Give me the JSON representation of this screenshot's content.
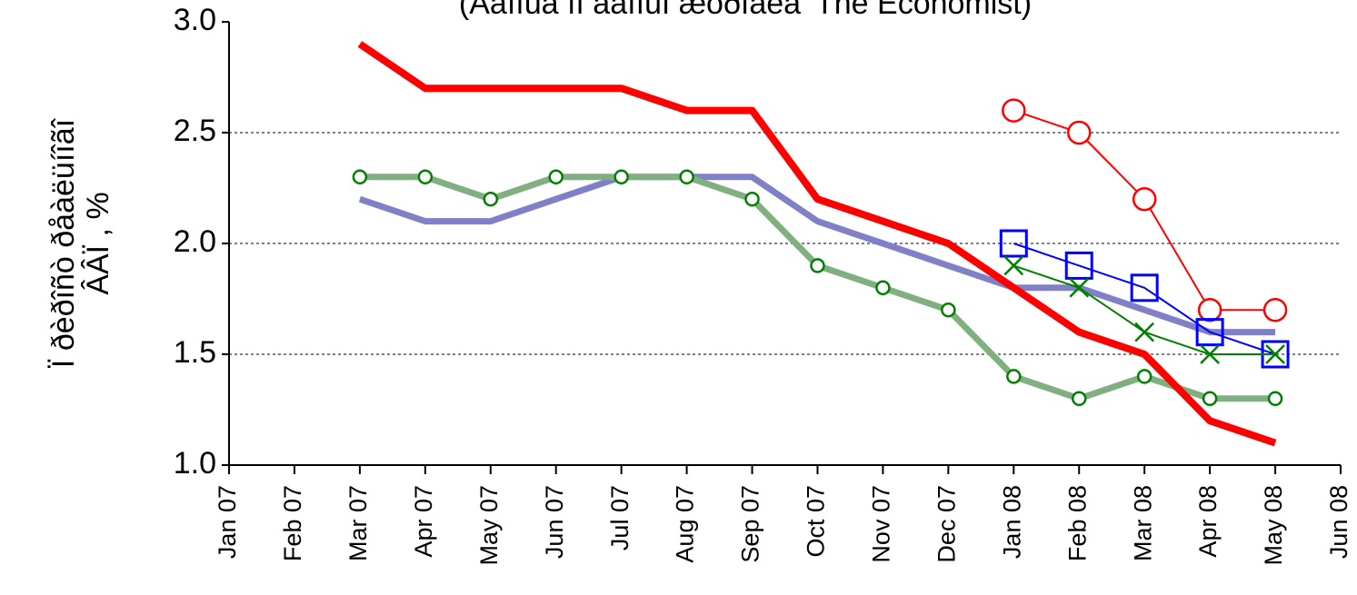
{
  "chart_data": {
    "type": "line",
    "title": "(Äàííûå ïî äàííûì æóðíàëà 'The Economist)",
    "y_label": [
      "Ï ðèðîñò ðåàëüíîãî",
      "ÂÂÏ , %"
    ],
    "categories": [
      "Jan 07",
      "Feb 07",
      "Mar 07",
      "Apr 07",
      "May 07",
      "Jun 07",
      "Jul 07",
      "Aug 07",
      "Sep 07",
      "Oct 07",
      "Nov 07",
      "Dec 07",
      "Jan 08",
      "Feb 08",
      "Mar 08",
      "Apr 08",
      "May 08",
      "Jun 08"
    ],
    "ylim": [
      1.0,
      3.0
    ],
    "yticks": [
      {
        "value": 1.0,
        "label": "1.0"
      },
      1.5,
      {
        "value": 2.0,
        "label": "2.0"
      },
      2.5,
      {
        "value": 3.0,
        "label": "3.0"
      }
    ],
    "grid": true,
    "series": [
      {
        "color": "#8080c8",
        "width": 7,
        "marker": "none",
        "values": [
          null,
          null,
          2.2,
          2.1,
          2.1,
          2.2,
          2.3,
          2.3,
          2.3,
          2.1,
          2.0,
          1.9,
          1.8,
          1.8,
          1.7,
          1.6,
          1.6,
          null
        ]
      },
      {
        "color": "#80b080",
        "width": 7,
        "marker": "circle",
        "marker_color": "#008000",
        "values": [
          null,
          null,
          2.3,
          2.3,
          2.2,
          2.3,
          2.3,
          2.3,
          2.2,
          1.9,
          1.8,
          1.7,
          1.4,
          1.3,
          1.4,
          1.3,
          1.3,
          null
        ]
      },
      {
        "color": "#ff0000",
        "width": 8,
        "marker": "none",
        "values": [
          null,
          null,
          2.9,
          2.7,
          2.7,
          2.7,
          2.7,
          2.6,
          2.6,
          2.2,
          2.1,
          2.0,
          1.8,
          1.6,
          1.5,
          1.2,
          1.1,
          null
        ]
      },
      {
        "color": "#ff0000",
        "width": 2,
        "marker": "big-circle",
        "marker_color": "#ff0000",
        "values": [
          null,
          null,
          null,
          null,
          null,
          null,
          null,
          null,
          null,
          null,
          null,
          null,
          2.6,
          2.5,
          2.2,
          1.7,
          1.7,
          null
        ]
      },
      {
        "color": "#0000ff",
        "width": 2,
        "marker": "square",
        "marker_color": "#0000ff",
        "values": [
          null,
          null,
          null,
          null,
          null,
          null,
          null,
          null,
          null,
          null,
          null,
          null,
          2.0,
          1.9,
          1.8,
          1.6,
          1.5,
          null
        ]
      },
      {
        "color": "#008000",
        "width": 2,
        "marker": "x",
        "marker_color": "#008000",
        "values": [
          null,
          null,
          null,
          null,
          null,
          null,
          null,
          null,
          null,
          null,
          null,
          null,
          1.9,
          1.8,
          1.6,
          1.5,
          1.5,
          null
        ]
      }
    ]
  }
}
